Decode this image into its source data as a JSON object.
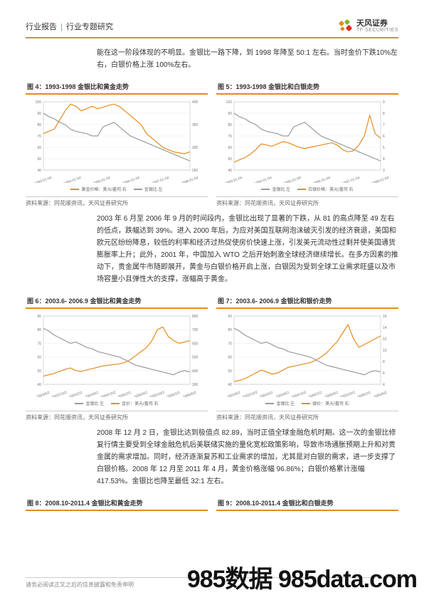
{
  "header": {
    "left_1": "行业报告",
    "left_2": "行业专题研究",
    "brand": "天风证券",
    "brand_en": "TF SECURITIES"
  },
  "colors": {
    "accent": "#e58b1f",
    "series_orange": "#e58b1f",
    "series_gray": "#9a9a9a",
    "grid": "#e8e8e8",
    "axis": "#bfbfbf",
    "text": "#333333",
    "muted": "#777777"
  },
  "p1": "能在这一阶段体现的不明显。金银比一路下降，到 1998 年降至 50:1 左右。当时金价下跌10%左右，白银价格上涨 100%左右。",
  "p2": "2003 年 6 月至 2006 年 9 月的时间段内，金银比出现了显著的下跌，从 81 的高点降至 49 左右的低点，跌幅达到 39%。进入 2000 年后，为应对美国互联网泡沫破灭引发的经济衰退，美国和欧元区纷纷降息，较低的利率和经济过热促使房价快速上涨，引发美元流动性过剩并使美国通货膨胀率上升；此外，2001 年，中国加入 WTO 之后开始刺激全球经济继续增长。在多方因素的推动下，贵金属牛市随即展开，黄金与白银价格开启上涨，白银因为受到全球工业需求旺盛以及市场容量小且弹性大的支撑，涨幅高于黄金。",
  "p3": "2008 年 12 月 2 日，金银比达到极值点 82.89，当时正值全球金融危机时期。这一次的金银比修复行情主要受到全球金融危机后美联储实施的量化宽松政策影响，导致市场通胀预期上升和对贵金属的需求增加。同时，经济逐渐复苏和工业需求的增加，尤其是对白银的需求，进一步支撑了白银价格。2008 年 12 月至 2011 年 4 月，黄金价格涨幅 96.86%；白银价格累计涨幅 417.53%。金银比也降至最低 32:1 左右。",
  "source_text": "资料来源：同花顺资讯，天风证券研究所",
  "charts": {
    "c4": {
      "title": "图 4：1993-1998 金银比和黄金走势",
      "left_axis": {
        "min": 40,
        "max": 100,
        "step": 10
      },
      "right_axis": {
        "min": 250,
        "max": 400,
        "step": 50
      },
      "x_labels": [
        "1993-01-04",
        "1994-01-04",
        "1995-01-04",
        "1996-01-04",
        "1997-01-04",
        "1998-01-04"
      ],
      "legend": [
        {
          "label": "黄金价格：美元/盎司  右",
          "color": "#e58b1f"
        },
        {
          "label": "金银比  左",
          "color": "#9a9a9a"
        }
      ],
      "series": {
        "gray": [
          90,
          87,
          85,
          82,
          80,
          76,
          74,
          73,
          72,
          70,
          70,
          78,
          80,
          82,
          78,
          74,
          70,
          68,
          66,
          64,
          62,
          60,
          58,
          56,
          54,
          52,
          50,
          48
        ],
        "orange": [
          330,
          335,
          340,
          360,
          380,
          395,
          390,
          380,
          385,
          390,
          385,
          388,
          392,
          395,
          390,
          380,
          370,
          360,
          350,
          330,
          320,
          310,
          300,
          295,
          290,
          288,
          286,
          290
        ]
      }
    },
    "c5": {
      "title": "图 5：1993-1998 金银比和白银走势",
      "left_axis": {
        "min": 40,
        "max": 100,
        "step": 10
      },
      "right_axis": {
        "min": 3.0,
        "max": 9.0,
        "step": 1.0
      },
      "x_labels": [
        "1993-01-04",
        "1994-01-04",
        "1995-01-04",
        "1996-01-04",
        "1997-01-04",
        "1998-01-04"
      ],
      "legend": [
        {
          "label": "金银比  左",
          "color": "#9a9a9a"
        },
        {
          "label": "白银价格：美元/盎司  右",
          "color": "#e58b1f"
        }
      ],
      "series": {
        "gray": [
          90,
          87,
          85,
          82,
          80,
          76,
          74,
          73,
          72,
          70,
          70,
          78,
          80,
          82,
          78,
          74,
          70,
          68,
          66,
          64,
          62,
          60,
          58,
          56,
          54,
          52,
          50,
          48
        ],
        "orange": [
          3.7,
          3.9,
          4.1,
          4.4,
          4.8,
          5.3,
          5.2,
          5.1,
          5.3,
          5.5,
          5.4,
          5.2,
          5.0,
          4.9,
          5.0,
          5.1,
          5.2,
          5.3,
          5.4,
          5.2,
          4.8,
          4.6,
          4.7,
          5.2,
          6.0,
          7.8,
          6.2,
          5.8
        ]
      }
    },
    "c6": {
      "title": "图 6：2003.6- 2006.9 金银比和黄金走势",
      "left_axis": {
        "min": 40,
        "max": 90,
        "step": 10
      },
      "right_axis": {
        "min": 300,
        "max": 800,
        "step": 100
      },
      "x_labels": [
        "2003/6/2",
        "2003/10/2",
        "2004/2/2",
        "2004/6/2",
        "2004/10/2",
        "2005/2/2",
        "2005/6/2",
        "2005/10/2",
        "2006/2/2",
        "2006/6/2"
      ],
      "legend": [
        {
          "label": "金银比  左",
          "color": "#9a9a9a"
        },
        {
          "label": "金价：美元/盎司  右",
          "color": "#e58b1f"
        }
      ],
      "series": {
        "gray": [
          81,
          79,
          76,
          74,
          72,
          70,
          71,
          69,
          67,
          66,
          64,
          63,
          62,
          61,
          60,
          58,
          56,
          54,
          53,
          52,
          51,
          50,
          49,
          48,
          47,
          49,
          50,
          49
        ],
        "orange": [
          360,
          370,
          380,
          395,
          410,
          420,
          400,
          395,
          405,
          415,
          425,
          435,
          440,
          445,
          450,
          460,
          480,
          510,
          540,
          570,
          620,
          700,
          720,
          650,
          620,
          600,
          610,
          620
        ]
      }
    },
    "c7": {
      "title": "图 7：2003.6- 2006.9 金银比和银价走势",
      "left_axis": {
        "min": 40,
        "max": 90,
        "step": 10
      },
      "right_axis": {
        "min": 4.0,
        "max": 16.0,
        "step": 2.0
      },
      "x_labels": [
        "2003/6/2",
        "2003/10/2",
        "2004/2/2",
        "2004/6/2",
        "2004/10/2",
        "2005/2/2",
        "2005/6/2",
        "2005/10/2",
        "2006/2/2",
        "2006/6/2"
      ],
      "legend": [
        {
          "label": "金银比  左",
          "color": "#9a9a9a"
        },
        {
          "label": "银价：美元/盎司  右",
          "color": "#e58b1f"
        }
      ],
      "series": {
        "gray": [
          81,
          79,
          76,
          74,
          72,
          70,
          71,
          69,
          67,
          66,
          64,
          63,
          62,
          61,
          60,
          58,
          56,
          54,
          53,
          52,
          51,
          50,
          49,
          48,
          47,
          49,
          50,
          49
        ],
        "orange": [
          4.5,
          4.7,
          5.0,
          5.5,
          6.0,
          6.5,
          6.2,
          5.8,
          6.0,
          6.5,
          7.0,
          7.2,
          7.4,
          7.6,
          7.8,
          8.2,
          8.8,
          9.5,
          10.5,
          11.5,
          13.0,
          14.5,
          12.0,
          10.5,
          11.0,
          11.5,
          12.0,
          12.5
        ]
      }
    },
    "c8": {
      "title": "图 8：2008.10-2011.4 金银比和黄金走势"
    },
    "c9": {
      "title": "图 9：2008.10-2011.4 金银比和白银走势"
    }
  },
  "watermark": "985数据 985data.com",
  "footer": "请务必阅读正文之后的信息披露和免责申明"
}
